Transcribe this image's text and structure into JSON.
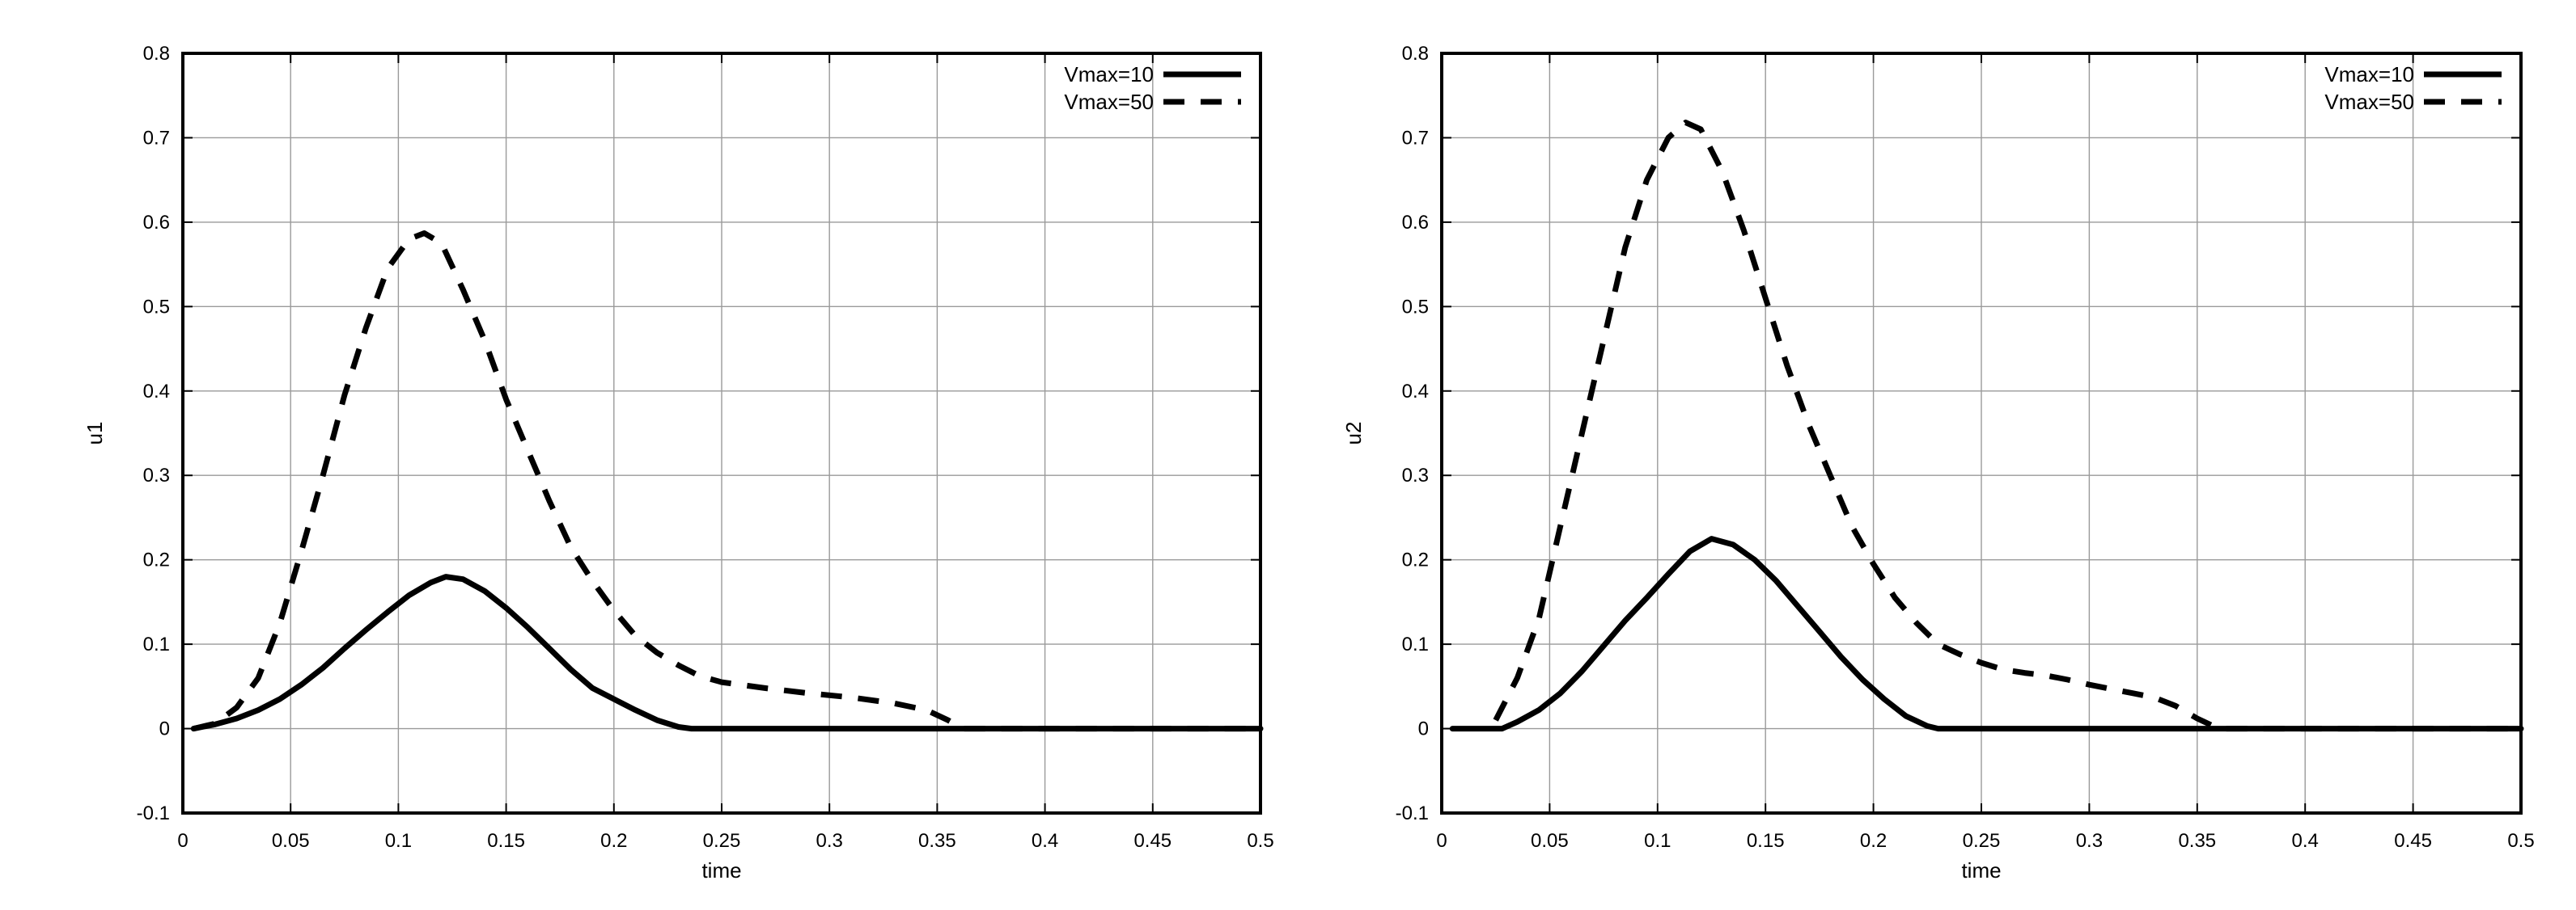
{
  "chart_data": [
    {
      "type": "line",
      "xlabel": "time",
      "ylabel": "u1",
      "xlim": [
        0,
        0.5
      ],
      "ylim": [
        -0.1,
        0.8
      ],
      "xticks": [
        "0",
        "0.05",
        "0.1",
        "0.15",
        "0.2",
        "0.25",
        "0.3",
        "0.35",
        "0.4",
        "0.45",
        "0.5"
      ],
      "yticks": [
        "-0.1",
        "0",
        "0.1",
        "0.2",
        "0.3",
        "0.4",
        "0.5",
        "0.6",
        "0.7",
        "0.8"
      ],
      "grid": true,
      "legend_position": "top-right",
      "series": [
        {
          "name": "Vmax=10",
          "style": "solid",
          "color": "#000000",
          "points": [
            [
              0.005,
              0.0
            ],
            [
              0.015,
              0.005
            ],
            [
              0.025,
              0.012
            ],
            [
              0.035,
              0.022
            ],
            [
              0.045,
              0.035
            ],
            [
              0.055,
              0.052
            ],
            [
              0.065,
              0.072
            ],
            [
              0.075,
              0.095
            ],
            [
              0.085,
              0.117
            ],
            [
              0.095,
              0.138
            ],
            [
              0.105,
              0.158
            ],
            [
              0.115,
              0.173
            ],
            [
              0.122,
              0.18
            ],
            [
              0.13,
              0.177
            ],
            [
              0.14,
              0.163
            ],
            [
              0.15,
              0.143
            ],
            [
              0.16,
              0.12
            ],
            [
              0.17,
              0.095
            ],
            [
              0.18,
              0.07
            ],
            [
              0.19,
              0.048
            ],
            [
              0.2,
              0.035
            ],
            [
              0.21,
              0.022
            ],
            [
              0.22,
              0.01
            ],
            [
              0.23,
              0.002
            ],
            [
              0.236,
              0.0
            ],
            [
              0.3,
              0.0
            ],
            [
              0.4,
              0.0
            ],
            [
              0.5,
              0.0
            ]
          ]
        },
        {
          "name": "Vmax=50",
          "style": "dashed",
          "color": "#000000",
          "points": [
            [
              0.005,
              0.0
            ],
            [
              0.015,
              0.006
            ],
            [
              0.025,
              0.025
            ],
            [
              0.035,
              0.06
            ],
            [
              0.045,
              0.125
            ],
            [
              0.055,
              0.21
            ],
            [
              0.065,
              0.3
            ],
            [
              0.075,
              0.395
            ],
            [
              0.085,
              0.475
            ],
            [
              0.095,
              0.545
            ],
            [
              0.105,
              0.58
            ],
            [
              0.112,
              0.587
            ],
            [
              0.12,
              0.575
            ],
            [
              0.13,
              0.52
            ],
            [
              0.14,
              0.46
            ],
            [
              0.15,
              0.39
            ],
            [
              0.16,
              0.33
            ],
            [
              0.17,
              0.27
            ],
            [
              0.18,
              0.215
            ],
            [
              0.19,
              0.175
            ],
            [
              0.2,
              0.14
            ],
            [
              0.21,
              0.11
            ],
            [
              0.22,
              0.09
            ],
            [
              0.23,
              0.075
            ],
            [
              0.24,
              0.062
            ],
            [
              0.25,
              0.055
            ],
            [
              0.27,
              0.048
            ],
            [
              0.29,
              0.042
            ],
            [
              0.31,
              0.037
            ],
            [
              0.33,
              0.03
            ],
            [
              0.345,
              0.022
            ],
            [
              0.355,
              0.01
            ],
            [
              0.362,
              0.0
            ],
            [
              0.4,
              0.0
            ],
            [
              0.5,
              0.0
            ]
          ]
        }
      ]
    },
    {
      "type": "line",
      "xlabel": "time",
      "ylabel": "u2",
      "xlim": [
        0,
        0.5
      ],
      "ylim": [
        -0.1,
        0.8
      ],
      "xticks": [
        "0",
        "0.05",
        "0.1",
        "0.15",
        "0.2",
        "0.25",
        "0.3",
        "0.35",
        "0.4",
        "0.45",
        "0.5"
      ],
      "yticks": [
        "-0.1",
        "0",
        "0.1",
        "0.2",
        "0.3",
        "0.4",
        "0.5",
        "0.6",
        "0.7",
        "0.8"
      ],
      "grid": true,
      "legend_position": "top-right",
      "series": [
        {
          "name": "Vmax=10",
          "style": "solid",
          "color": "#000000",
          "points": [
            [
              0.005,
              0.0
            ],
            [
              0.015,
              0.0
            ],
            [
              0.028,
              0.0
            ],
            [
              0.035,
              0.008
            ],
            [
              0.045,
              0.022
            ],
            [
              0.055,
              0.042
            ],
            [
              0.065,
              0.068
            ],
            [
              0.075,
              0.098
            ],
            [
              0.085,
              0.128
            ],
            [
              0.095,
              0.155
            ],
            [
              0.105,
              0.183
            ],
            [
              0.115,
              0.21
            ],
            [
              0.125,
              0.225
            ],
            [
              0.135,
              0.218
            ],
            [
              0.145,
              0.2
            ],
            [
              0.155,
              0.175
            ],
            [
              0.165,
              0.145
            ],
            [
              0.175,
              0.115
            ],
            [
              0.185,
              0.085
            ],
            [
              0.195,
              0.058
            ],
            [
              0.205,
              0.035
            ],
            [
              0.215,
              0.015
            ],
            [
              0.225,
              0.003
            ],
            [
              0.23,
              0.0
            ],
            [
              0.3,
              0.0
            ],
            [
              0.4,
              0.0
            ],
            [
              0.5,
              0.0
            ]
          ]
        },
        {
          "name": "Vmax=50",
          "style": "dashed",
          "color": "#000000",
          "points": [
            [
              0.025,
              0.01
            ],
            [
              0.035,
              0.06
            ],
            [
              0.045,
              0.13
            ],
            [
              0.055,
              0.24
            ],
            [
              0.065,
              0.35
            ],
            [
              0.075,
              0.46
            ],
            [
              0.085,
              0.57
            ],
            [
              0.095,
              0.65
            ],
            [
              0.105,
              0.7
            ],
            [
              0.113,
              0.718
            ],
            [
              0.12,
              0.71
            ],
            [
              0.13,
              0.66
            ],
            [
              0.14,
              0.59
            ],
            [
              0.15,
              0.51
            ],
            [
              0.16,
              0.43
            ],
            [
              0.17,
              0.36
            ],
            [
              0.18,
              0.3
            ],
            [
              0.19,
              0.24
            ],
            [
              0.2,
              0.195
            ],
            [
              0.21,
              0.155
            ],
            [
              0.22,
              0.125
            ],
            [
              0.23,
              0.1
            ],
            [
              0.24,
              0.088
            ],
            [
              0.25,
              0.078
            ],
            [
              0.26,
              0.07
            ],
            [
              0.27,
              0.066
            ],
            [
              0.28,
              0.063
            ],
            [
              0.29,
              0.058
            ],
            [
              0.3,
              0.052
            ],
            [
              0.31,
              0.047
            ],
            [
              0.32,
              0.042
            ],
            [
              0.33,
              0.037
            ],
            [
              0.34,
              0.027
            ],
            [
              0.35,
              0.012
            ],
            [
              0.36,
              0.0
            ],
            [
              0.4,
              0.0
            ],
            [
              0.5,
              0.0
            ]
          ]
        }
      ]
    }
  ]
}
